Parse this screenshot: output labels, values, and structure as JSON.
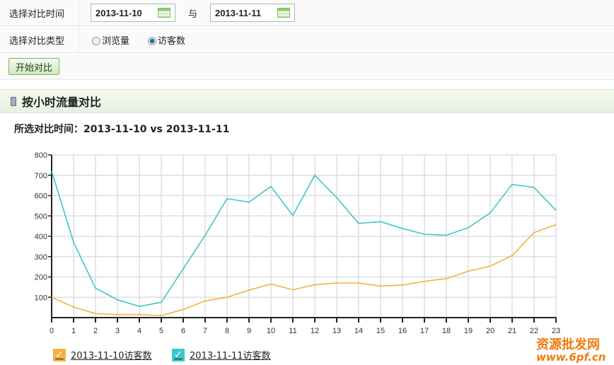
{
  "filters": {
    "time_label": "选择对比时间",
    "date1": "2013-11-10",
    "sep": "与",
    "date2": "2013-11-11",
    "type_label": "选择对比类型",
    "options": [
      {
        "label": "浏览量",
        "selected": false
      },
      {
        "label": "访客数",
        "selected": true
      }
    ],
    "start_button": "开始对比"
  },
  "section": {
    "title": "按小时流量对比",
    "subtitle": "所选对比时间：2013-11-10 vs 2013-11-11"
  },
  "chart_data": {
    "type": "line",
    "xlim": [
      0,
      23
    ],
    "ylim": [
      0,
      800
    ],
    "grid": true,
    "x": [
      0,
      1,
      2,
      3,
      4,
      5,
      6,
      7,
      8,
      9,
      10,
      11,
      12,
      13,
      14,
      15,
      16,
      17,
      18,
      19,
      20,
      21,
      22,
      23
    ],
    "yticks": [
      100,
      200,
      300,
      400,
      500,
      600,
      700,
      800
    ],
    "legend": "bottom-left",
    "series": [
      {
        "name": "2013-11-10访客数",
        "color": "#f5b041",
        "values": [
          100,
          52,
          20,
          15,
          15,
          10,
          40,
          82,
          100,
          135,
          165,
          137,
          162,
          170,
          170,
          155,
          160,
          178,
          192,
          228,
          253,
          305,
          418,
          457
        ]
      },
      {
        "name": "2013-11-11访客数",
        "color": "#3cc8c8",
        "values": [
          720,
          370,
          145,
          88,
          55,
          75,
          240,
          405,
          585,
          568,
          645,
          502,
          700,
          590,
          463,
          472,
          438,
          410,
          405,
          442,
          515,
          655,
          640,
          527
        ]
      }
    ]
  },
  "watermark": {
    "text": "资源批发网 www.6pf.cn"
  }
}
